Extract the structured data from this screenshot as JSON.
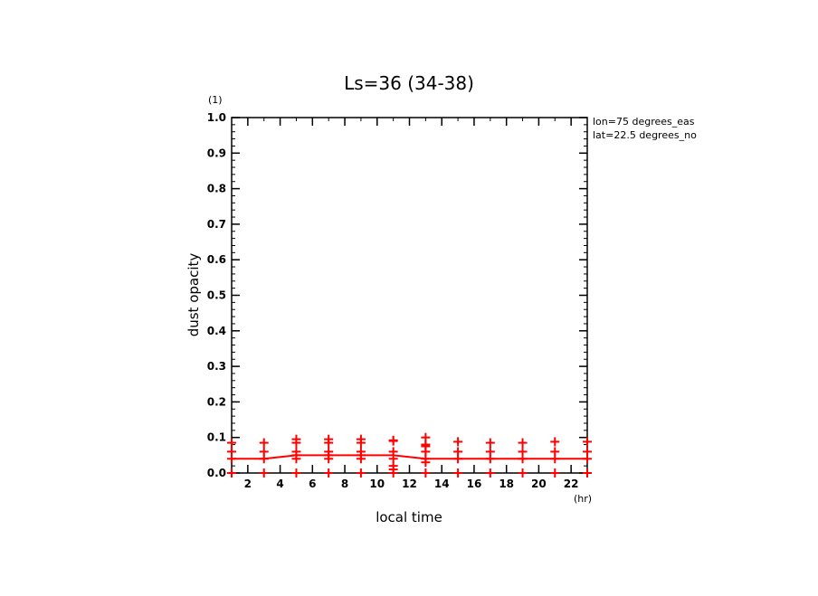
{
  "chart_data": {
    "type": "scatter",
    "title": "Ls=36 (34-38)",
    "xlabel": "local time",
    "ylabel": "dust opacity",
    "x_unit": "(hr)",
    "y_unit": "(1)",
    "annotations": [
      "lon=75 degrees_eas",
      "lat=22.5 degrees_no"
    ],
    "xlim": [
      1,
      23
    ],
    "ylim": [
      0,
      1.0
    ],
    "xticks": [
      2,
      4,
      6,
      8,
      10,
      12,
      14,
      16,
      18,
      20,
      22
    ],
    "xtick_labels": [
      "2",
      "4",
      "6",
      "8",
      "10",
      "12",
      "14",
      "16",
      "18",
      "20",
      "22"
    ],
    "yticks": [
      0,
      0.1,
      0.2,
      0.3,
      0.4,
      0.5,
      0.6,
      0.7,
      0.8,
      0.9,
      1.0
    ],
    "ytick_labels": [
      "0.0",
      "0.1",
      "0.2",
      "0.3",
      "0.4",
      "0.5",
      "0.6",
      "0.7",
      "0.8",
      "0.9",
      "1.0"
    ],
    "grid": false,
    "color": "#ff0000",
    "line": {
      "x": [
        1,
        3,
        5,
        7,
        9,
        11,
        13,
        15,
        17,
        19,
        21,
        23
      ],
      "y": [
        0.04,
        0.04,
        0.05,
        0.05,
        0.05,
        0.05,
        0.04,
        0.04,
        0.04,
        0.04,
        0.04,
        0.04
      ]
    },
    "points": [
      {
        "x": 1,
        "y": [
          0.0,
          0.04,
          0.06,
          0.085
        ]
      },
      {
        "x": 3,
        "y": [
          0.0,
          0.04,
          0.06,
          0.085
        ]
      },
      {
        "x": 5,
        "y": [
          0.0,
          0.04,
          0.05,
          0.06,
          0.085,
          0.095
        ]
      },
      {
        "x": 7,
        "y": [
          0.0,
          0.04,
          0.05,
          0.06,
          0.085,
          0.095
        ]
      },
      {
        "x": 9,
        "y": [
          0.0,
          0.04,
          0.05,
          0.06,
          0.085,
          0.095
        ]
      },
      {
        "x": 11,
        "y": [
          0.0,
          0.01,
          0.02,
          0.04,
          0.06,
          0.09,
          0.092
        ]
      },
      {
        "x": 13,
        "y": [
          0.0,
          0.03,
          0.04,
          0.06,
          0.075,
          0.08,
          0.1
        ]
      },
      {
        "x": 15,
        "y": [
          0.0,
          0.04,
          0.06,
          0.088
        ]
      },
      {
        "x": 17,
        "y": [
          0.0,
          0.04,
          0.06,
          0.085
        ]
      },
      {
        "x": 19,
        "y": [
          0.0,
          0.04,
          0.06,
          0.085
        ]
      },
      {
        "x": 21,
        "y": [
          0.0,
          0.04,
          0.06,
          0.088
        ]
      },
      {
        "x": 23,
        "y": [
          0.0,
          0.04,
          0.06,
          0.088
        ]
      }
    ]
  }
}
